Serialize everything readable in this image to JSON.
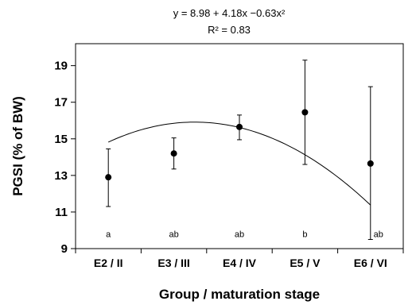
{
  "chart_data": {
    "type": "scatter",
    "equation": "y = 8.98 + 4.18x −0.63x²",
    "r_squared": "R² = 0.83",
    "xlabel": "Group / maturation stage",
    "ylabel": "PGSI (% of BW)",
    "categories": [
      "E2 / II",
      "E3 / III",
      "E4 / IV",
      "E5 / V",
      "E6 / VI"
    ],
    "y_ticks": [
      9,
      11,
      13,
      15,
      17,
      19
    ],
    "ylim": [
      9,
      20.2
    ],
    "means": [
      12.9,
      14.2,
      15.65,
      16.45,
      13.65
    ],
    "error_low": [
      11.3,
      13.35,
      14.95,
      13.6,
      9.5
    ],
    "error_high": [
      14.45,
      15.05,
      16.3,
      19.3,
      17.85
    ],
    "significance_letters": [
      "a",
      "ab",
      "ab",
      "b",
      "ab"
    ],
    "letter_y": 9.8,
    "trendline": {
      "type": "polynomial",
      "coefficients": [
        8.98,
        4.18,
        -0.63
      ]
    },
    "grid": false,
    "legend": "none"
  }
}
